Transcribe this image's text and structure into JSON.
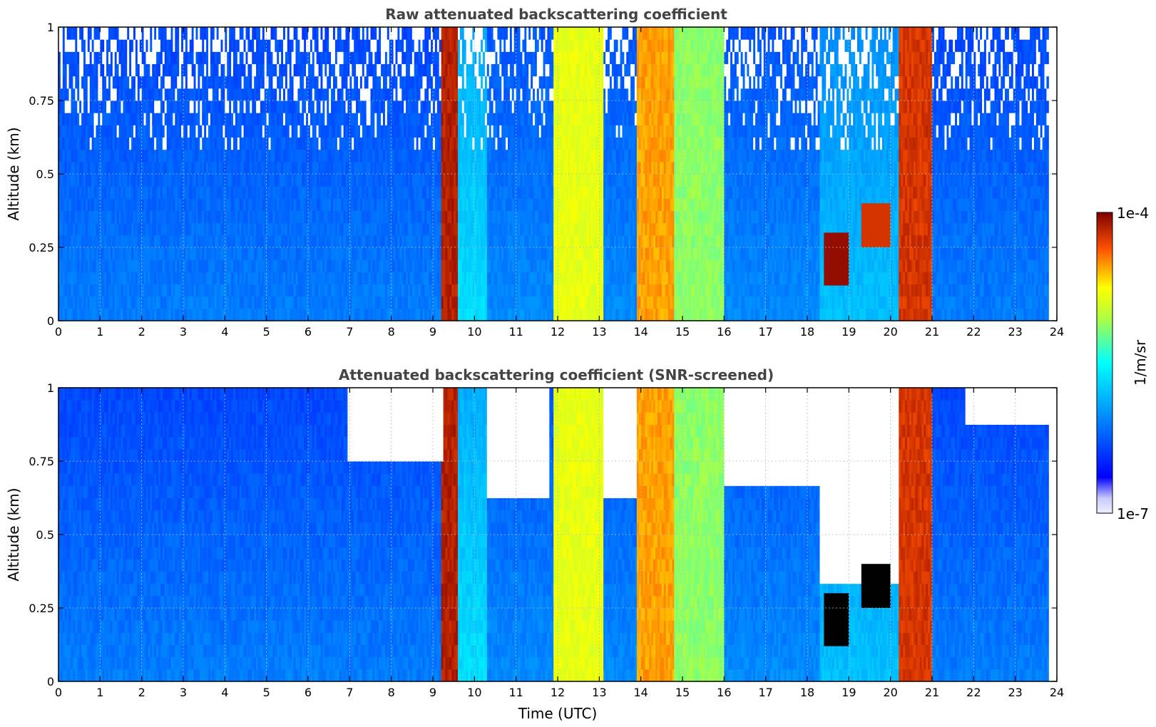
{
  "chart_data": {
    "type": "heatmap",
    "colormap": "jet",
    "panels": [
      {
        "title": "Raw attenuated backscattering coefficient",
        "ylabel": "Altitude (km)",
        "xlim": [
          0,
          24
        ],
        "ylim": [
          0,
          1
        ],
        "xticks": [
          "0",
          "1",
          "2",
          "3",
          "4",
          "5",
          "6",
          "7",
          "8",
          "9",
          "10",
          "11",
          "12",
          "13",
          "14",
          "15",
          "16",
          "17",
          "18",
          "19",
          "20",
          "21",
          "22",
          "23",
          "24"
        ],
        "yticks": [
          "0",
          "0.25",
          "0.5",
          "0.75",
          "1"
        ],
        "grid": true,
        "data_end_time": 23.8,
        "time_segments": [
          {
            "start": 0.0,
            "end": 9.2,
            "level": 0.3
          },
          {
            "start": 9.2,
            "end": 9.6,
            "level": 0.95
          },
          {
            "start": 9.6,
            "end": 10.3,
            "level": 0.45
          },
          {
            "start": 10.3,
            "end": 11.9,
            "level": 0.32
          },
          {
            "start": 11.9,
            "end": 13.1,
            "level": 0.72
          },
          {
            "start": 13.1,
            "end": 13.9,
            "level": 0.32
          },
          {
            "start": 13.9,
            "end": 14.8,
            "level": 0.82
          },
          {
            "start": 14.8,
            "end": 16.0,
            "level": 0.62
          },
          {
            "start": 16.0,
            "end": 18.3,
            "level": 0.32
          },
          {
            "start": 18.3,
            "end": 20.2,
            "level": 0.4
          },
          {
            "start": 20.2,
            "end": 21.0,
            "level": 0.92
          },
          {
            "start": 21.0,
            "end": 23.8,
            "level": 0.3
          }
        ],
        "cloud_layers": [
          {
            "start": 18.4,
            "end": 19.0,
            "altitude": [
              0.12,
              0.3
            ],
            "level": 0.98
          },
          {
            "start": 19.3,
            "end": 20.0,
            "altitude": [
              0.25,
              0.4
            ],
            "level": 0.92
          }
        ]
      },
      {
        "title": "Attenuated backscattering coefficient (SNR-screened)",
        "ylabel": "Altitude (km)",
        "xlabel": "Time (UTC)",
        "xlim": [
          0,
          24
        ],
        "ylim": [
          0,
          1
        ],
        "xticks": [
          "0",
          "1",
          "2",
          "3",
          "4",
          "5",
          "6",
          "7",
          "8",
          "9",
          "10",
          "11",
          "12",
          "13",
          "14",
          "15",
          "16",
          "17",
          "18",
          "19",
          "20",
          "21",
          "22",
          "23",
          "24"
        ],
        "yticks": [
          "0",
          "0.25",
          "0.5",
          "0.75",
          "1"
        ],
        "grid": true,
        "data_end_time": 23.8,
        "screened_regions": [
          {
            "start": 6.9,
            "end": 9.2,
            "min_altitude": 0.72
          },
          {
            "start": 10.3,
            "end": 11.8,
            "min_altitude": 0.62
          },
          {
            "start": 13.1,
            "end": 13.9,
            "min_altitude": 0.6
          },
          {
            "start": 16.0,
            "end": 18.3,
            "min_altitude": 0.65
          },
          {
            "start": 18.3,
            "end": 20.2,
            "min_altitude": 0.3
          },
          {
            "start": 21.8,
            "end": 23.8,
            "min_altitude": 0.85
          }
        ]
      }
    ],
    "colorbar": {
      "label": "1/m/sr",
      "max_label": "1e-4",
      "min_label": "1e-7",
      "scale": "log",
      "range": [
        1e-07,
        0.0001
      ]
    }
  }
}
